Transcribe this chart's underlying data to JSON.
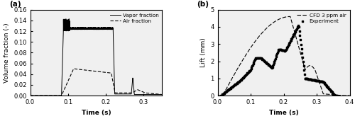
{
  "panel_a": {
    "xlabel": "Time (s)",
    "ylabel": "Volume fraction (-)",
    "xlim": [
      0,
      0.35
    ],
    "ylim": [
      0.0,
      0.16
    ],
    "xticks": [
      0,
      0.1,
      0.2,
      0.3
    ],
    "yticks": [
      0.0,
      0.02,
      0.04,
      0.06,
      0.08,
      0.1,
      0.12,
      0.14,
      0.16
    ],
    "label": "(a)",
    "legend_vapor": "Vapor fraction",
    "legend_air": "Air fraction"
  },
  "panel_b": {
    "xlabel": "Time (s)",
    "ylabel": "Lift (mm)",
    "xlim": [
      0.0,
      0.4
    ],
    "ylim": [
      0.0,
      5.0
    ],
    "xticks": [
      0.0,
      0.1,
      0.2,
      0.3,
      0.4
    ],
    "yticks": [
      0.0,
      1.0,
      2.0,
      3.0,
      4.0,
      5.0
    ],
    "label": "(b)",
    "legend_cfd": "CFD 3 ppm air",
    "legend_exp": "Experiment"
  }
}
